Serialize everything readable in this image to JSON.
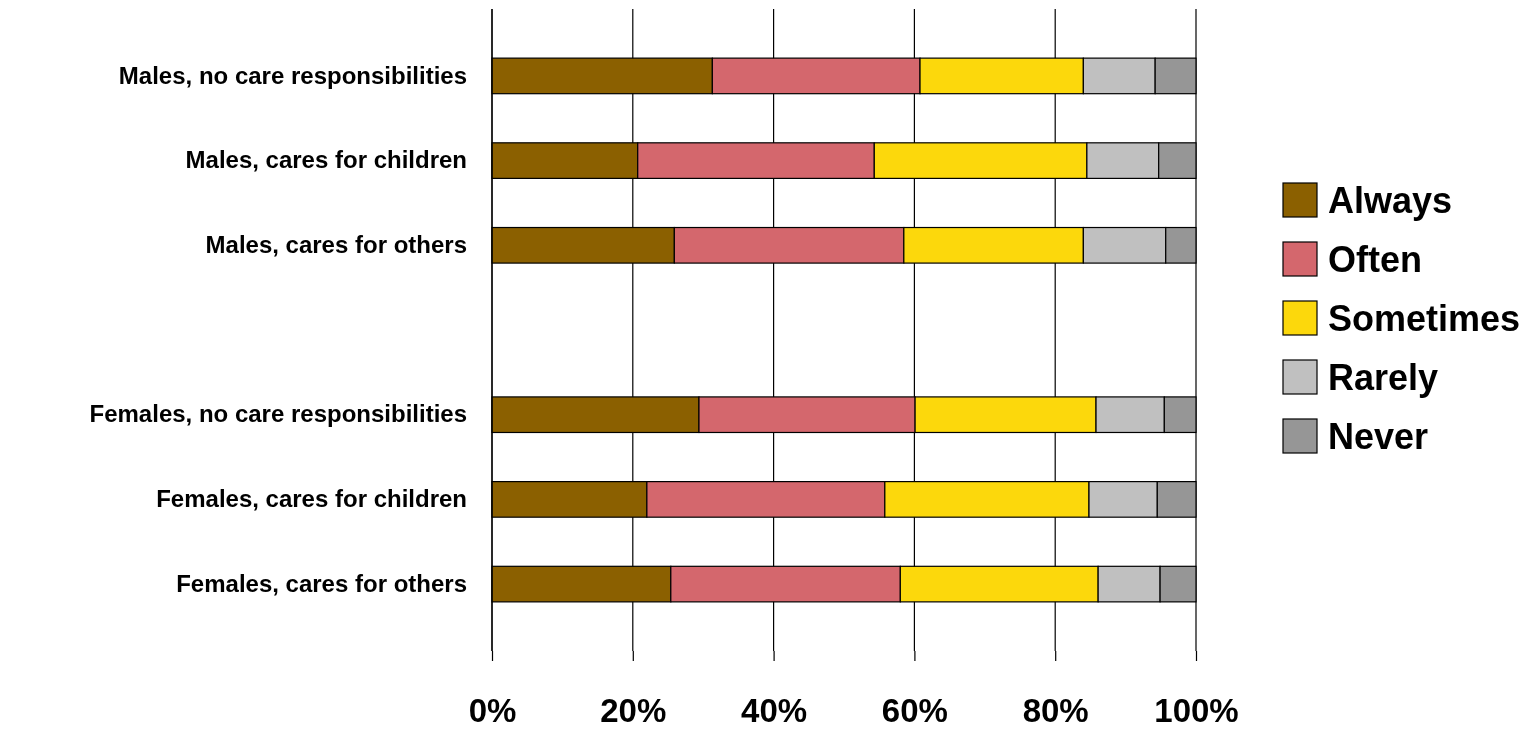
{
  "chart_data": {
    "type": "bar",
    "orientation": "horizontal",
    "stacked": true,
    "categories": [
      "Males, no care responsibilities",
      "Males, cares for children",
      "Males, cares for others",
      null,
      "Females, no care responsibilities",
      "Females, cares for children",
      "Females, cares for others"
    ],
    "series": [
      {
        "name": "Always",
        "color": "#8b6000",
        "values": [
          31.3,
          20.7,
          25.9,
          null,
          29.4,
          22.0,
          25.4
        ]
      },
      {
        "name": "Often",
        "color": "#d4676d",
        "values": [
          29.5,
          33.6,
          32.6,
          null,
          30.7,
          33.8,
          32.6
        ]
      },
      {
        "name": "Sometimes",
        "color": "#fcd80c",
        "values": [
          23.2,
          30.2,
          25.5,
          null,
          25.7,
          29.0,
          28.1
        ]
      },
      {
        "name": "Rarely",
        "color": "#c0c0c0",
        "values": [
          10.2,
          10.2,
          11.7,
          null,
          9.7,
          9.7,
          8.8
        ]
      },
      {
        "name": "Never",
        "color": "#969696",
        "values": [
          5.8,
          5.3,
          4.3,
          null,
          4.5,
          5.5,
          5.1
        ]
      }
    ],
    "xlim": [
      0,
      100
    ],
    "xticks": [
      {
        "value": 0,
        "label": "0%"
      },
      {
        "value": 20,
        "label": "20%"
      },
      {
        "value": 40,
        "label": "40%"
      },
      {
        "value": 60,
        "label": "60%"
      },
      {
        "value": 80,
        "label": "80%"
      },
      {
        "value": 100,
        "label": "100%"
      }
    ],
    "grid": "x",
    "legend": "right"
  }
}
